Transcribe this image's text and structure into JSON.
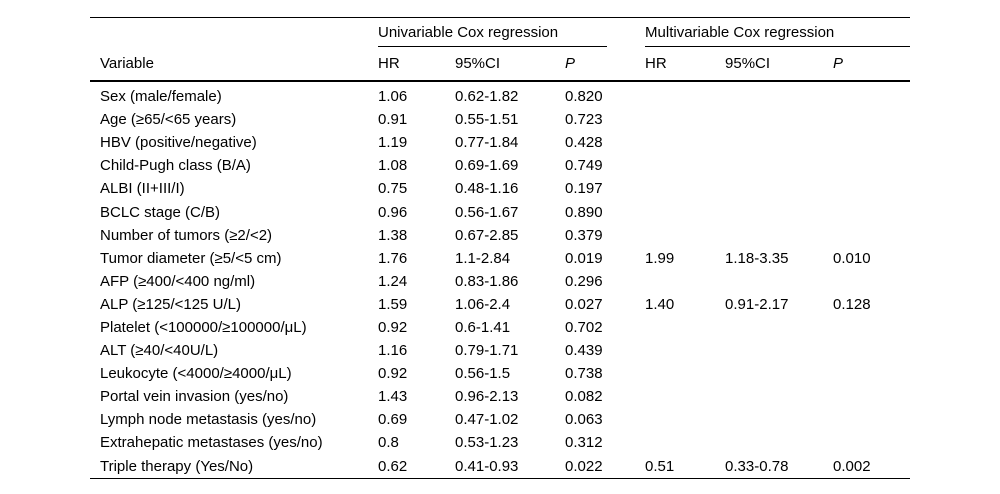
{
  "table": {
    "spanners": [
      {
        "label": "Univariable Cox regression"
      },
      {
        "label": "Multivariable Cox regression"
      }
    ],
    "columns": {
      "variable": "Variable",
      "uni_hr": "HR",
      "uni_ci": "95%CI",
      "uni_p": "P",
      "multi_hr": "HR",
      "multi_ci": "95%CI",
      "multi_p": "P"
    },
    "rows": [
      [
        "Sex (male/female)",
        "1.06",
        "0.62-1.82",
        "0.820",
        "",
        "",
        ""
      ],
      [
        "Age (≥65/<65 years)",
        "0.91",
        "0.55-1.51",
        "0.723",
        "",
        "",
        ""
      ],
      [
        "HBV (positive/negative)",
        "1.19",
        "0.77-1.84",
        "0.428",
        "",
        "",
        ""
      ],
      [
        "Child-Pugh class (B/A)",
        "1.08",
        "0.69-1.69",
        "0.749",
        "",
        "",
        ""
      ],
      [
        "ALBI (II+III/I)",
        "0.75",
        "0.48-1.16",
        "0.197",
        "",
        "",
        ""
      ],
      [
        "BCLC stage (C/B)",
        "0.96",
        "0.56-1.67",
        "0.890",
        "",
        "",
        ""
      ],
      [
        "Number of tumors (≥2/<2)",
        "1.38",
        "0.67-2.85",
        "0.379",
        "",
        "",
        ""
      ],
      [
        "Tumor diameter (≥5/<5 cm)",
        "1.76",
        "1.1-2.84",
        "0.019",
        "1.99",
        "1.18-3.35",
        "0.010"
      ],
      [
        "AFP (≥400/<400 ng/ml)",
        "1.24",
        "0.83-1.86",
        "0.296",
        "",
        "",
        ""
      ],
      [
        "ALP (≥125/<125 U/L)",
        "1.59",
        "1.06-2.4",
        "0.027",
        "1.40",
        "0.91-2.17",
        "0.128"
      ],
      [
        "Platelet (<100000/≥100000/μL)",
        "0.92",
        "0.6-1.41",
        "0.702",
        "",
        "",
        ""
      ],
      [
        "ALT (≥40/<40U/L)",
        "1.16",
        "0.79-1.71",
        "0.439",
        "",
        "",
        ""
      ],
      [
        "Leukocyte (<4000/≥4000/μL)",
        "0.92",
        "0.56-1.5",
        "0.738",
        "",
        "",
        ""
      ],
      [
        "Portal vein invasion (yes/no)",
        "1.43",
        "0.96-2.13",
        "0.082",
        "",
        "",
        ""
      ],
      [
        "Lymph node metastasis (yes/no)",
        "0.69",
        "0.47-1.02",
        "0.063",
        "",
        "",
        ""
      ],
      [
        "Extrahepatic metastases (yes/no)",
        "0.8",
        "0.53-1.23",
        "0.312",
        "",
        "",
        ""
      ],
      [
        "Triple therapy (Yes/No)",
        "0.62",
        "0.41-0.93",
        "0.022",
        "0.51",
        "0.33-0.78",
        "0.002"
      ]
    ]
  },
  "colors": {
    "text": "#000000",
    "background": "#ffffff",
    "rule": "#000000"
  }
}
